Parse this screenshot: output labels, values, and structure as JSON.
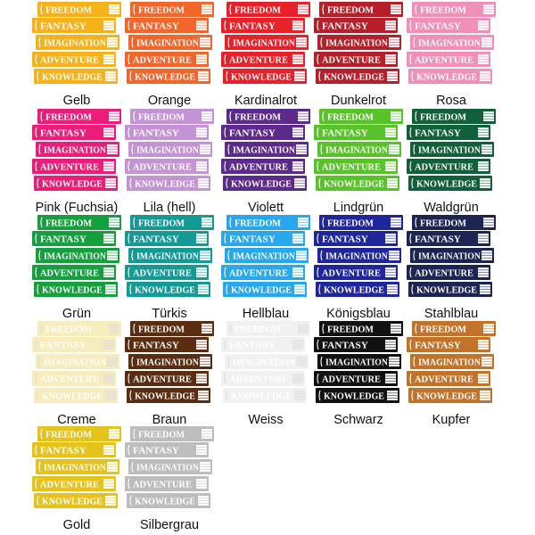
{
  "book_titles": [
    "FREEDOM",
    "FANTASY",
    "IMAGINATION",
    "ADVENTURE",
    "KNOWLEDGE"
  ],
  "swatches": [
    {
      "name": "Gelb",
      "color": "#f5b21a"
    },
    {
      "name": "Orange",
      "color": "#f2652b"
    },
    {
      "name": "Kardinalrot",
      "color": "#e8202a"
    },
    {
      "name": "Dunkelrot",
      "color": "#b51f2a"
    },
    {
      "name": "Rosa",
      "color": "#f090b8"
    },
    {
      "name": "Pink (Fuchsia)",
      "color": "#ea1e79"
    },
    {
      "name": "Lila (hell)",
      "color": "#c393d3"
    },
    {
      "name": "Violett",
      "color": "#5b2a8a"
    },
    {
      "name": "Lindgrün",
      "color": "#59c22a"
    },
    {
      "name": "Waldgrün",
      "color": "#12603a"
    },
    {
      "name": "Grün",
      "color": "#14a03c"
    },
    {
      "name": "Türkis",
      "color": "#139a97"
    },
    {
      "name": "Hellblau",
      "color": "#28a8ec"
    },
    {
      "name": "Königsblau",
      "color": "#1f259a"
    },
    {
      "name": "Stahlblau",
      "color": "#1c2454"
    },
    {
      "name": "Creme",
      "color": "#f7ecbc"
    },
    {
      "name": "Braun",
      "color": "#5a2c10"
    },
    {
      "name": "Weiss",
      "color": "#f1f1f1"
    },
    {
      "name": "Schwarz",
      "color": "#111111"
    },
    {
      "name": "Kupfer",
      "color": "#c2732a"
    },
    {
      "name": "Gold",
      "color": "#e6c21c"
    },
    {
      "name": "Silbergrau",
      "color": "#bdbdbd"
    }
  ]
}
